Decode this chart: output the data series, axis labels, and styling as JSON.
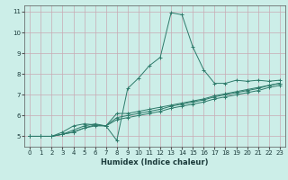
{
  "xlabel": "Humidex (Indice chaleur)",
  "background_color": "#cceee8",
  "grid_color": "#c8aab4",
  "line_color": "#2d7a6a",
  "xlim": [
    -0.5,
    23.5
  ],
  "ylim": [
    4.5,
    11.3
  ],
  "xticks": [
    0,
    1,
    2,
    3,
    4,
    5,
    6,
    7,
    8,
    9,
    10,
    11,
    12,
    13,
    14,
    15,
    16,
    17,
    18,
    19,
    20,
    21,
    22,
    23
  ],
  "yticks": [
    5,
    6,
    7,
    8,
    9,
    10,
    11
  ],
  "line1_x": [
    0,
    1,
    2,
    3,
    4,
    5,
    6,
    7,
    8,
    9,
    10,
    11,
    12,
    13,
    14,
    15,
    16,
    17,
    18,
    19,
    20,
    21,
    22,
    23
  ],
  "line1_y": [
    5.0,
    5.0,
    5.0,
    5.2,
    5.5,
    5.6,
    5.55,
    5.5,
    4.8,
    7.3,
    7.8,
    8.4,
    8.8,
    10.95,
    10.85,
    9.3,
    8.2,
    7.55,
    7.55,
    7.7,
    7.65,
    7.7,
    7.65,
    7.7
  ],
  "line2_x": [
    0,
    1,
    2,
    3,
    4,
    5,
    6,
    7,
    8,
    9,
    10,
    11,
    12,
    13,
    14,
    15,
    16,
    17,
    18,
    19,
    20,
    21,
    22,
    23
  ],
  "line2_y": [
    5.0,
    5.0,
    5.0,
    5.1,
    5.3,
    5.5,
    5.6,
    5.5,
    6.1,
    6.1,
    6.2,
    6.3,
    6.4,
    6.5,
    6.6,
    6.7,
    6.8,
    6.95,
    7.05,
    7.15,
    7.25,
    7.35,
    7.45,
    7.55
  ],
  "line3_x": [
    0,
    1,
    2,
    3,
    4,
    5,
    6,
    7,
    8,
    9,
    10,
    11,
    12,
    13,
    14,
    15,
    16,
    17,
    18,
    19,
    20,
    21,
    22,
    23
  ],
  "line3_y": [
    5.0,
    5.0,
    5.0,
    5.1,
    5.2,
    5.4,
    5.55,
    5.5,
    5.9,
    6.0,
    6.1,
    6.2,
    6.3,
    6.45,
    6.55,
    6.65,
    6.75,
    6.9,
    7.0,
    7.1,
    7.2,
    7.3,
    7.45,
    7.55
  ],
  "line4_x": [
    0,
    1,
    2,
    3,
    4,
    5,
    6,
    7,
    8,
    9,
    10,
    11,
    12,
    13,
    14,
    15,
    16,
    17,
    18,
    19,
    20,
    21,
    22,
    23
  ],
  "line4_y": [
    5.0,
    5.0,
    5.0,
    5.1,
    5.2,
    5.4,
    5.5,
    5.5,
    5.8,
    5.9,
    6.0,
    6.1,
    6.2,
    6.35,
    6.45,
    6.55,
    6.65,
    6.8,
    6.9,
    7.0,
    7.1,
    7.2,
    7.35,
    7.45
  ]
}
